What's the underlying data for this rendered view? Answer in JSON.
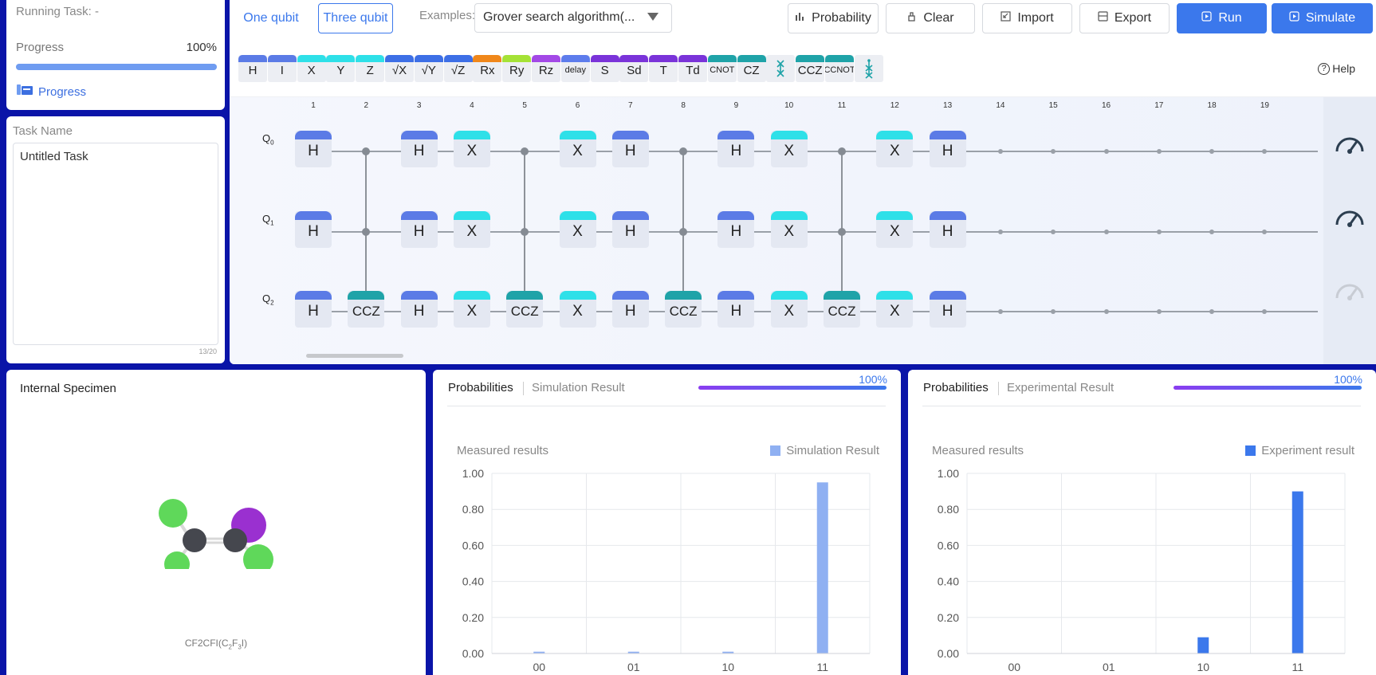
{
  "progress_panel": {
    "running_task_label": "Running Task: -",
    "progress_label": "Progress",
    "progress_value": "100%",
    "progress_fraction": 1.0,
    "progress_link": "Progress"
  },
  "task_panel": {
    "label": "Task Name",
    "value": "Untitled Task",
    "char_count": "13/20"
  },
  "toolbar": {
    "mode_one": "One qubit",
    "mode_three": "Three qubit",
    "examples_label": "Examples:",
    "examples_value": "Grover search algorithm(...",
    "probability": "Probability",
    "clear": "Clear",
    "import": "Import",
    "export": "Export",
    "run": "Run",
    "simulate": "Simulate",
    "help": "Help"
  },
  "palette": [
    {
      "label": "H",
      "color": "#5b7be6"
    },
    {
      "label": "I",
      "color": "#5b7be6"
    },
    {
      "label": "X",
      "color": "#2ee0e8"
    },
    {
      "label": "Y",
      "color": "#2ee0e8"
    },
    {
      "label": "Z",
      "color": "#2ee0e8"
    },
    {
      "label": "√X",
      "color": "#3d6fe6"
    },
    {
      "label": "√Y",
      "color": "#3d6fe6"
    },
    {
      "label": "√Z",
      "color": "#3d6fe6"
    },
    {
      "label": "Rx",
      "color": "#f0871a"
    },
    {
      "label": "Ry",
      "color": "#a5e236"
    },
    {
      "label": "Rz",
      "color": "#a349e6"
    },
    {
      "label": "delay",
      "color": "#5d7cec"
    },
    {
      "label": "S",
      "color": "#7a33d9"
    },
    {
      "label": "Sd",
      "color": "#7a33d9"
    },
    {
      "label": "T",
      "color": "#7a33d9"
    },
    {
      "label": "Td",
      "color": "#7a33d9"
    },
    {
      "label": "CNOT",
      "color": "#1fa3a8"
    },
    {
      "label": "CZ",
      "color": "#1fa3a8"
    },
    {
      "label": "",
      "color": "#1fa3a8",
      "icon": "swap-icon"
    },
    {
      "label": "CCZ",
      "color": "#1fa3a8"
    },
    {
      "label": "CCNOT",
      "color": "#1fa3a8"
    },
    {
      "label": "",
      "color": "#1fa3a8",
      "icon": "cswap-icon"
    }
  ],
  "circuit": {
    "columns": [
      "1",
      "2",
      "3",
      "4",
      "5",
      "6",
      "7",
      "8",
      "9",
      "10",
      "11",
      "12",
      "13",
      "14",
      "15",
      "16",
      "17",
      "18",
      "19"
    ],
    "qubits": [
      "Q0",
      "Q1",
      "Q2"
    ],
    "gates": [
      [
        "H",
        "ctrl",
        "H",
        "X",
        "ctrl",
        "X",
        "H",
        "ctrl",
        "H",
        "X",
        "ctrl",
        "X",
        "H"
      ],
      [
        "H",
        "ctrl",
        "H",
        "X",
        "ctrl",
        "X",
        "H",
        "ctrl",
        "H",
        "X",
        "ctrl",
        "X",
        "H"
      ],
      [
        "H",
        "CCZ",
        "H",
        "X",
        "CCZ",
        "X",
        "H",
        "CCZ",
        "H",
        "X",
        "CCZ",
        "X",
        "H"
      ]
    ],
    "colors": {
      "H": "#5b7be6",
      "X": "#2ee0e8",
      "CCZ": "#1fa3a8"
    }
  },
  "specimen": {
    "title": "Internal Specimen",
    "formula_prefix": "CF2CFI(C",
    "formula_sub1": "2",
    "formula_mid": "F",
    "formula_sub2": "3",
    "formula_suffix": "I)"
  },
  "simulation": {
    "tab_active": "Probabilities",
    "tab_inactive": "Simulation Result",
    "progress": "100%",
    "measured_label": "Measured results",
    "legend": "Simulation Result",
    "color": "#8fb0f2"
  },
  "experiment": {
    "tab_active": "Probabilities",
    "tab_inactive": "Experimental Result",
    "progress": "100%",
    "measured_label": "Measured results",
    "legend": "Experiment result",
    "color": "#3b78ec"
  },
  "chart_data": [
    {
      "type": "bar",
      "title": "",
      "categories": [
        "00",
        "01",
        "10",
        "11"
      ],
      "series": [
        {
          "name": "Simulation Result",
          "values": [
            0.01,
            0.01,
            0.01,
            0.95
          ]
        }
      ],
      "ylim": [
        0,
        1.0
      ],
      "yticks": [
        "0.00",
        "0.20",
        "0.40",
        "0.60",
        "0.80",
        "1.00"
      ],
      "grid": true,
      "legend_position": "top-right"
    },
    {
      "type": "bar",
      "title": "",
      "categories": [
        "00",
        "01",
        "10",
        "11"
      ],
      "series": [
        {
          "name": "Experiment result",
          "values": [
            0.0,
            0.0,
            0.09,
            0.9
          ]
        }
      ],
      "ylim": [
        0,
        1.0
      ],
      "yticks": [
        "0.00",
        "0.20",
        "0.40",
        "0.60",
        "0.80",
        "1.00"
      ],
      "grid": true,
      "legend_position": "top-right"
    }
  ]
}
